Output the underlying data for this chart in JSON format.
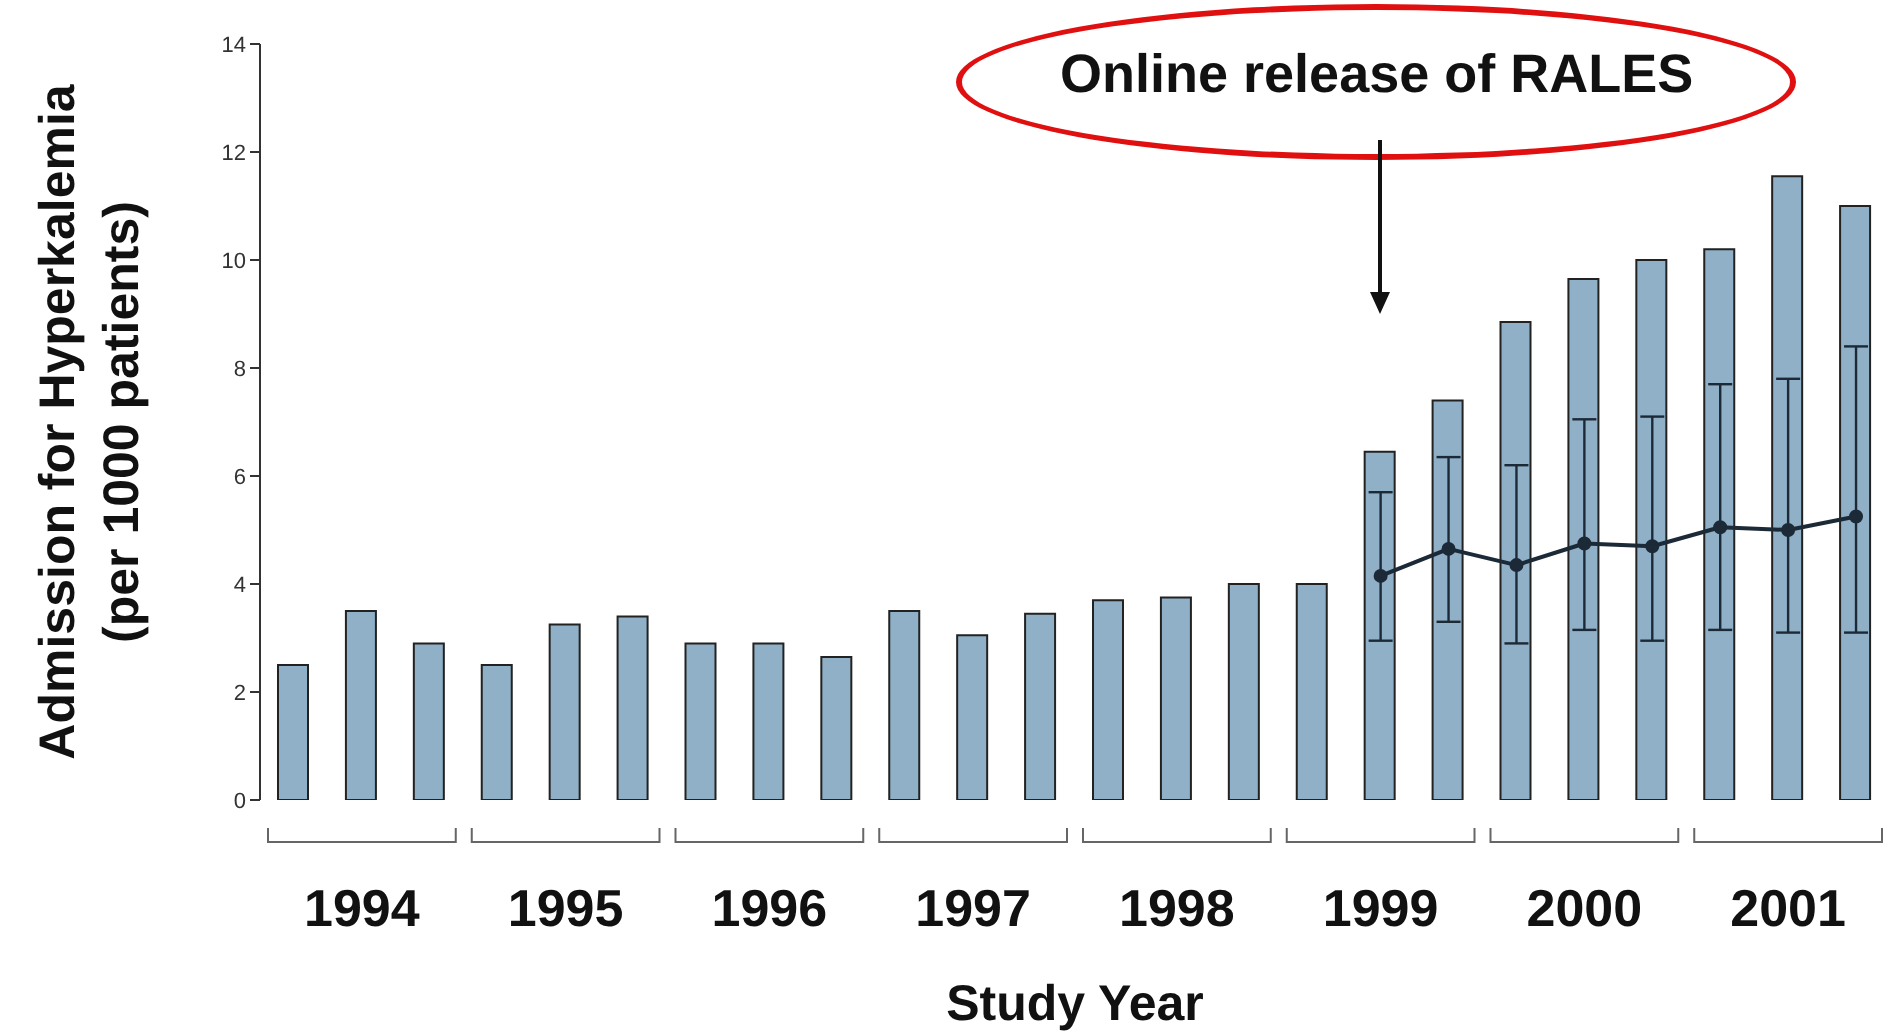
{
  "chart_data": {
    "type": "bar",
    "xlabel": "Study Year",
    "ylabel": "Admission for Hyperkalemia\n(per 1000 patients)",
    "categories": [
      null,
      "1994",
      null,
      null,
      "1995",
      null,
      null,
      "1996",
      null,
      null,
      "1997",
      null,
      null,
      "1998",
      null,
      null,
      "1999",
      null,
      null,
      "2000",
      null,
      null,
      "2001",
      null
    ],
    "series": [
      {
        "color": "#8fb0c6",
        "values": [
          2.5,
          3.5,
          2.9,
          2.5,
          3.25,
          3.4,
          2.9,
          2.9,
          2.65,
          3.5,
          3.05,
          3.45,
          3.7,
          3.75,
          4.0,
          4.0,
          6.45,
          7.4,
          8.85,
          9.65,
          10.0,
          10.2,
          11.55,
          11.0
        ]
      },
      {
        "type": "line",
        "color": "#1c2a38",
        "values": [
          null,
          null,
          null,
          null,
          null,
          null,
          null,
          null,
          null,
          null,
          null,
          null,
          null,
          null,
          null,
          null,
          4.15,
          4.65,
          4.35,
          4.75,
          4.7,
          5.05,
          5.0,
          5.25
        ],
        "errors": [
          null,
          null,
          null,
          null,
          null,
          null,
          null,
          null,
          null,
          null,
          null,
          null,
          null,
          null,
          null,
          null,
          [
            2.95,
            5.7
          ],
          [
            3.3,
            6.35
          ],
          [
            2.9,
            6.2
          ],
          [
            3.15,
            7.05
          ],
          [
            2.95,
            7.1
          ],
          [
            3.15,
            7.7
          ],
          [
            3.1,
            7.8
          ],
          [
            3.1,
            8.4
          ]
        ]
      }
    ],
    "ylim": [
      0,
      14
    ],
    "yticks": [
      0,
      2,
      4,
      6,
      8,
      10,
      12,
      14
    ],
    "marker": "circle",
    "annotations": [
      "Online release of RALES"
    ]
  }
}
